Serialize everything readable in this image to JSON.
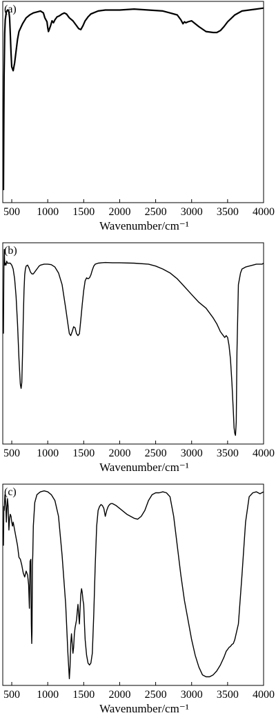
{
  "chart_data": [
    {
      "type": "line",
      "panel_label": "(a)",
      "xlabel": "Wavenumber/cm⁻¹",
      "ylabel": "",
      "xlim": [
        375,
        4000
      ],
      "ylim": [
        0,
        100
      ],
      "xticks": [
        500,
        1000,
        1500,
        2000,
        2500,
        3000,
        3500,
        4000
      ],
      "xtick_labels": [
        "500",
        "1000",
        "1500",
        "2000",
        "2500",
        "3000",
        "3500",
        "4000"
      ],
      "grid": false,
      "series": [
        {
          "x": [
            385,
            390,
            393,
            397,
            402,
            410,
            425,
            440,
            450,
            460,
            470,
            480,
            490,
            500,
            520,
            540,
            560,
            580,
            600,
            650,
            700,
            750,
            800,
            850,
            900,
            940,
            960,
            990,
            1000,
            1010,
            1020,
            1040,
            1060,
            1080,
            1100,
            1130,
            1160,
            1200,
            1230,
            1260,
            1300,
            1350,
            1400,
            1430,
            1460,
            1490,
            1520,
            1560,
            1600,
            1700,
            1800,
            1900,
            2000,
            2200,
            2400,
            2600,
            2700,
            2800,
            2850,
            2880,
            2900,
            2920,
            2950,
            3000,
            3100,
            3200,
            3300,
            3350,
            3400,
            3450,
            3500,
            3600,
            3700,
            3800,
            3900,
            4000
          ],
          "y": [
            5,
            45,
            63,
            72,
            85,
            92,
            96,
            97,
            97,
            96,
            93,
            85,
            75,
            68,
            66,
            70,
            76,
            82,
            86,
            90,
            93,
            94.5,
            95.5,
            96,
            96.5,
            95.5,
            93,
            91,
            88,
            86,
            87,
            89,
            91.5,
            90.5,
            92,
            93.5,
            94,
            95,
            95.5,
            95,
            93,
            91.5,
            89,
            87.5,
            87,
            89,
            91.5,
            93.5,
            95,
            96.5,
            97,
            97,
            97,
            97.5,
            97,
            96.5,
            95.5,
            94.5,
            92,
            90,
            91,
            90.5,
            91,
            91.5,
            88.5,
            86,
            85.5,
            85.5,
            86.5,
            88.5,
            91,
            94.5,
            96.5,
            97,
            97.5,
            98
          ]
        }
      ]
    },
    {
      "type": "line",
      "panel_label": "(b)",
      "xlabel": "Wavenumber/cm⁻¹",
      "ylabel": "",
      "xlim": [
        375,
        4000
      ],
      "ylim": [
        0,
        100
      ],
      "xticks": [
        500,
        1000,
        1500,
        2000,
        2500,
        3000,
        3500,
        4000
      ],
      "xtick_labels": [
        "500",
        "1000",
        "1500",
        "2000",
        "2500",
        "3000",
        "3500",
        "4000"
      ],
      "grid": false,
      "series": [
        {
          "x": [
            385,
            390,
            393,
            396,
            400,
            405,
            410,
            420,
            430,
            440,
            460,
            480,
            500,
            520,
            540,
            560,
            580,
            600,
            620,
            630,
            640,
            650,
            660,
            670,
            680,
            690,
            700,
            720,
            740,
            760,
            780,
            800,
            830,
            860,
            880,
            900,
            950,
            1000,
            1050,
            1100,
            1150,
            1200,
            1250,
            1280,
            1300,
            1320,
            1340,
            1360,
            1380,
            1400,
            1420,
            1440,
            1460,
            1480,
            1500,
            1520,
            1540,
            1560,
            1580,
            1600,
            1620,
            1640,
            1660,
            1700,
            1750,
            1800,
            1900,
            2000,
            2200,
            2400,
            2500,
            2600,
            2700,
            2800,
            2900,
            3000,
            3100,
            3200,
            3300,
            3350,
            3400,
            3420,
            3440,
            3460,
            3480,
            3500,
            3520,
            3540,
            3560,
            3580,
            3590,
            3600,
            3610,
            3620,
            3630,
            3650,
            3680,
            3700,
            3750,
            3800,
            3850,
            3900,
            3950,
            3980,
            4000
          ],
          "y": [
            55,
            88,
            94,
            98,
            93,
            90,
            91,
            90,
            92,
            91,
            91,
            91,
            90,
            88,
            83,
            74,
            60,
            42,
            29,
            27,
            30,
            45,
            62,
            77,
            85,
            88,
            89.5,
            90,
            88.5,
            86.5,
            85.5,
            85.5,
            87,
            88.5,
            89.5,
            90,
            90.5,
            90.5,
            90.2,
            89,
            86,
            80,
            68,
            60,
            55,
            54,
            56,
            58.5,
            58,
            55,
            54,
            55,
            62,
            70,
            77,
            82,
            83.5,
            83,
            83.5,
            85,
            87.5,
            89.5,
            90.5,
            91,
            91.2,
            91.3,
            91.2,
            91.2,
            91,
            90.5,
            89.5,
            88,
            86,
            83,
            79,
            75,
            71,
            68,
            63,
            60,
            56,
            55,
            54,
            53,
            54,
            53,
            49,
            42,
            30,
            15,
            7,
            4,
            3,
            10,
            45,
            80,
            86,
            88,
            89,
            89.5,
            90,
            90.5,
            90.5,
            90.5,
            91
          ]
        }
      ]
    },
    {
      "type": "line",
      "panel_label": "(c)",
      "xlabel": "Wavenumber/cm⁻¹",
      "ylabel": "",
      "xlim": [
        375,
        4000
      ],
      "ylim": [
        0,
        100
      ],
      "xticks": [
        500,
        1000,
        1500,
        2000,
        2500,
        3000,
        3500,
        4000
      ],
      "xtick_labels": [
        "500",
        "1000",
        "1500",
        "2000",
        "2500",
        "3000",
        "3500",
        "4000"
      ],
      "grid": false,
      "series": [
        {
          "x": [
            385,
            390,
            395,
            400,
            405,
            410,
            418,
            425,
            432,
            440,
            450,
            460,
            470,
            480,
            490,
            500,
            510,
            520,
            530,
            540,
            560,
            580,
            600,
            620,
            640,
            660,
            680,
            700,
            720,
            735,
            745,
            755,
            765,
            772,
            778,
            782,
            787,
            792,
            800,
            820,
            850,
            880,
            900,
            950,
            1000,
            1050,
            1100,
            1150,
            1200,
            1250,
            1280,
            1300,
            1310,
            1320,
            1330,
            1340,
            1350,
            1360,
            1370,
            1380,
            1400,
            1410,
            1420,
            1430,
            1440,
            1450,
            1460,
            1470,
            1480,
            1490,
            1500,
            1510,
            1520,
            1540,
            1560,
            1580,
            1600,
            1620,
            1640,
            1660,
            1680,
            1700,
            1720,
            1740,
            1760,
            1780,
            1800,
            1820,
            1840,
            1860,
            1880,
            1900,
            1950,
            2000,
            2100,
            2200,
            2250,
            2300,
            2350,
            2400,
            2450,
            2500,
            2550,
            2600,
            2650,
            2700,
            2750,
            2800,
            2850,
            2900,
            2950,
            3000,
            3050,
            3100,
            3150,
            3200,
            3250,
            3300,
            3350,
            3400,
            3450,
            3480,
            3500,
            3520,
            3540,
            3560,
            3580,
            3600,
            3650,
            3700,
            3750,
            3800,
            3850,
            3900,
            3950,
            4000
          ],
          "y": [
            70,
            90,
            88,
            92,
            96,
            95,
            90,
            82,
            88,
            94,
            90,
            78,
            84,
            86,
            85,
            82,
            80,
            82,
            80,
            78,
            74,
            70,
            64,
            63,
            60,
            56,
            54,
            57,
            55,
            50,
            38,
            62,
            63,
            30,
            20,
            26,
            60,
            65,
            80,
            92,
            96,
            97,
            97.5,
            98,
            97.5,
            96,
            93,
            85,
            65,
            40,
            15,
            2,
            8,
            20,
            25,
            20,
            15,
            18,
            25,
            28,
            32,
            36,
            40,
            35,
            30,
            38,
            45,
            48,
            46,
            42,
            40,
            30,
            22,
            14,
            10,
            9,
            10,
            15,
            35,
            60,
            80,
            88,
            90,
            91,
            90.5,
            89,
            85,
            88,
            90,
            91,
            91.5,
            91.5,
            90.5,
            89,
            86,
            84,
            83.5,
            85,
            88,
            93,
            96,
            97,
            97,
            97.5,
            97,
            95,
            85,
            70,
            55,
            42,
            32,
            22,
            14,
            8,
            4,
            3,
            3,
            4,
            6,
            9,
            13,
            16,
            17,
            18,
            18.5,
            19.5,
            20,
            22,
            30,
            55,
            82,
            95,
            97,
            97.5,
            96.5,
            97.5
          ]
        }
      ]
    }
  ]
}
